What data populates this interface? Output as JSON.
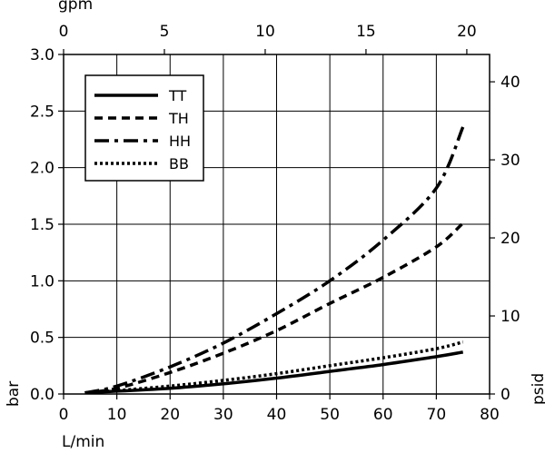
{
  "chart_data": {
    "type": "line",
    "title": "",
    "x_axis_bottom": {
      "label": "L/min",
      "range": [
        0,
        80
      ],
      "ticks": [
        0,
        10,
        20,
        30,
        40,
        50,
        60,
        70,
        80
      ]
    },
    "x_axis_top": {
      "label": "gpm",
      "range": [
        0,
        21.13
      ],
      "ticks": [
        0,
        5,
        10,
        15,
        20
      ]
    },
    "y_axis_left": {
      "label": "bar",
      "range": [
        0,
        3.0
      ],
      "ticks": [
        "0.0",
        "0.5",
        "1.0",
        "1.5",
        "2.0",
        "2.5",
        "3.0"
      ]
    },
    "y_axis_right": {
      "label": "psid",
      "range": [
        0,
        43.5
      ],
      "ticks": [
        0,
        10,
        20,
        30,
        40
      ]
    },
    "grid": true,
    "legend": {
      "position": "top-left"
    },
    "series": [
      {
        "name": "TT",
        "style": "solid",
        "points": [
          [
            4,
            0.01
          ],
          [
            10,
            0.025
          ],
          [
            20,
            0.05
          ],
          [
            30,
            0.09
          ],
          [
            40,
            0.14
          ],
          [
            50,
            0.2
          ],
          [
            60,
            0.26
          ],
          [
            70,
            0.33
          ],
          [
            75,
            0.37
          ]
        ]
      },
      {
        "name": "TH",
        "style": "dashed",
        "points": [
          [
            4,
            0.01
          ],
          [
            10,
            0.05
          ],
          [
            20,
            0.19
          ],
          [
            30,
            0.36
          ],
          [
            40,
            0.56
          ],
          [
            50,
            0.8
          ],
          [
            60,
            1.03
          ],
          [
            70,
            1.3
          ],
          [
            75,
            1.51
          ]
        ]
      },
      {
        "name": "HH",
        "style": "dashdot",
        "points": [
          [
            4,
            0.01
          ],
          [
            10,
            0.07
          ],
          [
            20,
            0.24
          ],
          [
            30,
            0.45
          ],
          [
            40,
            0.71
          ],
          [
            50,
            1.0
          ],
          [
            60,
            1.36
          ],
          [
            70,
            1.82
          ],
          [
            75,
            2.36
          ]
        ]
      },
      {
        "name": "BB",
        "style": "dotted",
        "points": [
          [
            4,
            0.01
          ],
          [
            10,
            0.03
          ],
          [
            20,
            0.07
          ],
          [
            30,
            0.12
          ],
          [
            40,
            0.18
          ],
          [
            50,
            0.25
          ],
          [
            60,
            0.32
          ],
          [
            70,
            0.4
          ],
          [
            75,
            0.46
          ]
        ]
      }
    ]
  }
}
